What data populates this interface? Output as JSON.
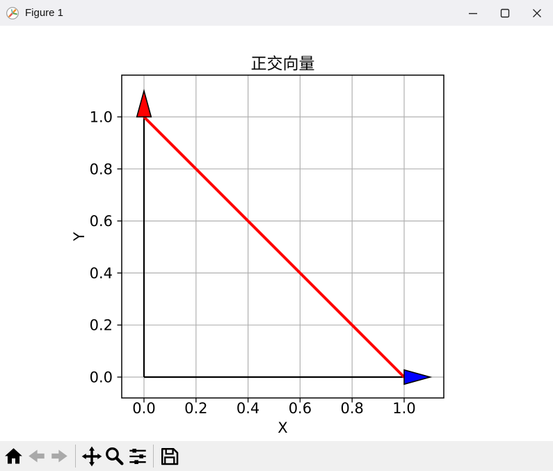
{
  "window": {
    "title": "Figure 1",
    "app_icon": "matplotlib-logo",
    "controls": [
      "minimize",
      "maximize",
      "close"
    ]
  },
  "chart_data": {
    "type": "line",
    "title": "正交向量",
    "xlabel": "X",
    "ylabel": "Y",
    "xlim": [
      -0.086,
      1.152
    ],
    "ylim": [
      -0.08,
      1.16
    ],
    "grid": true,
    "grid_color": "#b0b0b0",
    "xticks": {
      "values": [
        0,
        0.2,
        0.4,
        0.6,
        0.8,
        1.0
      ],
      "labels": [
        "0.0",
        "0.2",
        "0.4",
        "0.6",
        "0.8",
        "1.0"
      ]
    },
    "yticks": {
      "values": [
        0,
        0.2,
        0.4,
        0.6,
        0.8,
        1.0
      ],
      "labels": [
        "0.0",
        "0.2",
        "0.4",
        "0.6",
        "0.8",
        "1.0"
      ]
    },
    "vectors": [
      {
        "name": "x-unit-vector",
        "from": [
          0,
          0
        ],
        "to": [
          1,
          0
        ],
        "shaft_color": "#000000",
        "head_color": "#0000ff",
        "head_edge_color": "#000000",
        "head_length": 0.1,
        "head_half_width": 0.0275
      },
      {
        "name": "y-unit-vector",
        "from": [
          0,
          0
        ],
        "to": [
          0,
          1
        ],
        "shaft_color": "#000000",
        "head_color": "#ff0000",
        "head_edge_color": "#000000",
        "head_length": 0.1,
        "head_half_width": 0.0275
      }
    ],
    "segments": [
      {
        "name": "tip-connector",
        "from": [
          0,
          1
        ],
        "to": [
          1,
          0
        ],
        "color": "#ff0000",
        "width": 4
      }
    ]
  },
  "toolbar": {
    "buttons": [
      {
        "name": "home",
        "icon": "home-icon",
        "enabled": true
      },
      {
        "name": "back",
        "icon": "back-arrow-icon",
        "enabled": false
      },
      {
        "name": "forward",
        "icon": "forward-arrow-icon",
        "enabled": false
      },
      {
        "name": "pan",
        "icon": "pan-icon",
        "enabled": true
      },
      {
        "name": "zoom",
        "icon": "zoom-icon",
        "enabled": true
      },
      {
        "name": "configure-subplots",
        "icon": "sliders-icon",
        "enabled": true
      },
      {
        "name": "save",
        "icon": "save-icon",
        "enabled": true
      }
    ]
  }
}
